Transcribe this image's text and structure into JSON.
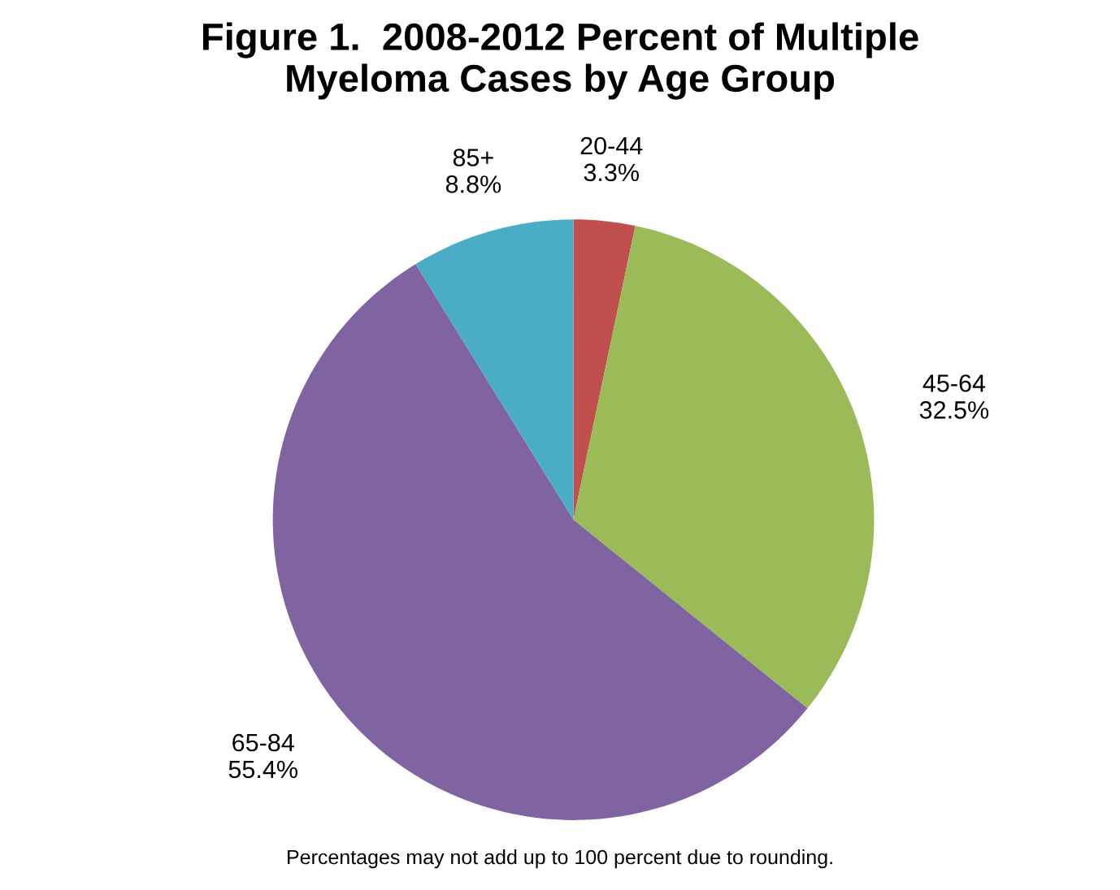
{
  "chart_data": {
    "type": "pie",
    "title": "Figure 1.  2008-2012 Percent of Multiple\nMyeloma Cases by Age Group",
    "categories": [
      "20-44",
      "45-64",
      "65-84",
      "85+"
    ],
    "values": [
      3.3,
      32.5,
      55.4,
      8.8
    ],
    "value_labels": [
      "3.3%",
      "32.5%",
      "55.4%",
      "8.8%"
    ],
    "colors": [
      "#c0504d",
      "#9bbb59",
      "#8064a2",
      "#4bacc6"
    ],
    "legend": false,
    "annotations": [
      "Percentages may not add up to 100 percent due to rounding."
    ]
  }
}
